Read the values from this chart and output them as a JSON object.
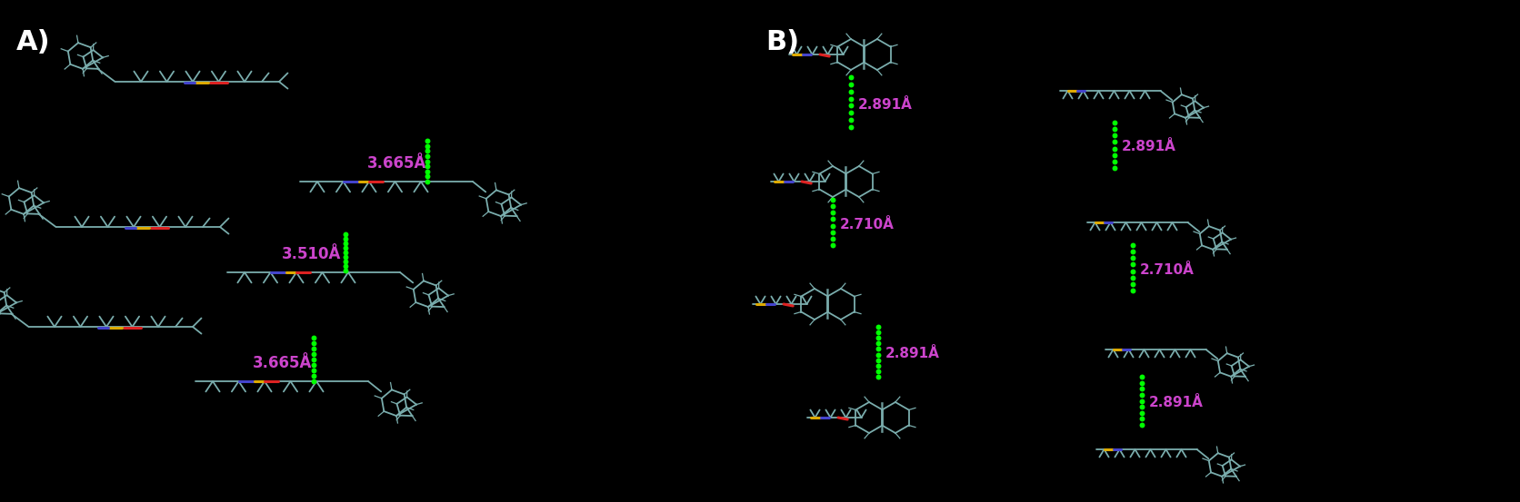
{
  "background_color": "#000000",
  "figsize": [
    16.72,
    5.53
  ],
  "dpi": 100,
  "mol_color": "#7aadad",
  "mol_color2": "#aaaaaa",
  "stick_color": "#cccccc",
  "green_dot": "#00ff00",
  "label_color": "#cc44cc",
  "white": "#ffffff",
  "red": "#dd2222",
  "blue": "#4444cc",
  "gold": "#ddaa00",
  "panel_A_label": "A)",
  "panel_B_label": "B)",
  "dist_3665": "3.665Å",
  "dist_3510": "3.510Å",
  "dist_2891": "2.891Å",
  "dist_2710": "2.710Å"
}
